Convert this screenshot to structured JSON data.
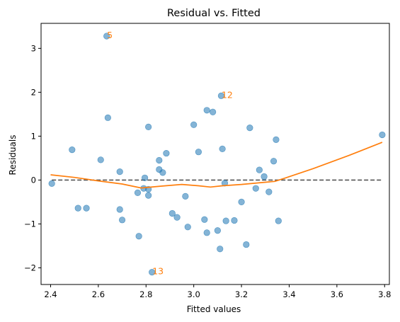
{
  "chart_data": {
    "type": "scatter",
    "title": "Residual vs. Fitted",
    "xlabel": "Fitted values",
    "ylabel": "Residuals",
    "xlim": [
      2.36,
      3.82
    ],
    "ylim": [
      -2.38,
      3.57
    ],
    "xticks": [
      2.4,
      2.6,
      2.8,
      3.0,
      3.2,
      3.4,
      3.6,
      3.8
    ],
    "xtick_labels": [
      "2.4",
      "2.6",
      "2.8",
      "3.0",
      "3.2",
      "3.4",
      "3.6",
      "3.8"
    ],
    "yticks": [
      -2,
      -1,
      0,
      1,
      2,
      3
    ],
    "ytick_labels": [
      "−2",
      "−1",
      "0",
      "1",
      "2",
      "3"
    ],
    "grid": false,
    "colors": {
      "points": "#1f77b4",
      "lowess": "#ff7f0e",
      "reference": "#555555",
      "labels": "#ff7f0e"
    },
    "reference_line_y": 0,
    "points": [
      {
        "x": 2.405,
        "y": -0.08
      },
      {
        "x": 2.49,
        "y": 0.69
      },
      {
        "x": 2.515,
        "y": -0.64
      },
      {
        "x": 2.55,
        "y": -0.64
      },
      {
        "x": 2.61,
        "y": 0.46
      },
      {
        "x": 2.635,
        "y": 3.28
      },
      {
        "x": 2.64,
        "y": 1.42
      },
      {
        "x": 2.69,
        "y": 0.19
      },
      {
        "x": 2.69,
        "y": -0.67
      },
      {
        "x": 2.7,
        "y": -0.91
      },
      {
        "x": 2.765,
        "y": -0.29
      },
      {
        "x": 2.77,
        "y": -1.28
      },
      {
        "x": 2.79,
        "y": -0.19
      },
      {
        "x": 2.795,
        "y": 0.05
      },
      {
        "x": 2.81,
        "y": -0.21
      },
      {
        "x": 2.81,
        "y": -0.35
      },
      {
        "x": 2.81,
        "y": 1.21
      },
      {
        "x": 2.825,
        "y": -2.1
      },
      {
        "x": 2.855,
        "y": 0.45
      },
      {
        "x": 2.855,
        "y": 0.24
      },
      {
        "x": 2.87,
        "y": 0.17
      },
      {
        "x": 2.885,
        "y": 0.61
      },
      {
        "x": 2.91,
        "y": -0.76
      },
      {
        "x": 2.93,
        "y": -0.85
      },
      {
        "x": 2.965,
        "y": -0.37
      },
      {
        "x": 2.975,
        "y": -1.07
      },
      {
        "x": 3.0,
        "y": 1.26
      },
      {
        "x": 3.02,
        "y": 0.64
      },
      {
        "x": 3.045,
        "y": -0.9
      },
      {
        "x": 3.055,
        "y": 1.59
      },
      {
        "x": 3.055,
        "y": -1.2
      },
      {
        "x": 3.08,
        "y": 1.55
      },
      {
        "x": 3.1,
        "y": -1.15
      },
      {
        "x": 3.11,
        "y": -1.57
      },
      {
        "x": 3.115,
        "y": 1.92
      },
      {
        "x": 3.12,
        "y": 0.71
      },
      {
        "x": 3.13,
        "y": -0.07
      },
      {
        "x": 3.135,
        "y": -0.93
      },
      {
        "x": 3.17,
        "y": -0.92
      },
      {
        "x": 3.2,
        "y": -0.5
      },
      {
        "x": 3.22,
        "y": -1.47
      },
      {
        "x": 3.235,
        "y": 1.19
      },
      {
        "x": 3.26,
        "y": -0.19
      },
      {
        "x": 3.275,
        "y": 0.23
      },
      {
        "x": 3.295,
        "y": 0.08
      },
      {
        "x": 3.315,
        "y": -0.27
      },
      {
        "x": 3.335,
        "y": 0.43
      },
      {
        "x": 3.345,
        "y": 0.92
      },
      {
        "x": 3.355,
        "y": -0.93
      },
      {
        "x": 3.79,
        "y": 1.03
      }
    ],
    "lowess": [
      {
        "x": 2.4,
        "y": 0.12
      },
      {
        "x": 2.5,
        "y": 0.06
      },
      {
        "x": 2.6,
        "y": -0.02
      },
      {
        "x": 2.7,
        "y": -0.09
      },
      {
        "x": 2.78,
        "y": -0.18
      },
      {
        "x": 2.86,
        "y": -0.14
      },
      {
        "x": 2.95,
        "y": -0.1
      },
      {
        "x": 3.02,
        "y": -0.13
      },
      {
        "x": 3.07,
        "y": -0.16
      },
      {
        "x": 3.12,
        "y": -0.13
      },
      {
        "x": 3.2,
        "y": -0.1
      },
      {
        "x": 3.28,
        "y": -0.06
      },
      {
        "x": 3.34,
        "y": -0.03
      },
      {
        "x": 3.38,
        "y": 0.04
      },
      {
        "x": 3.5,
        "y": 0.26
      },
      {
        "x": 3.65,
        "y": 0.56
      },
      {
        "x": 3.79,
        "y": 0.86
      }
    ],
    "annotations": [
      {
        "label": "5",
        "x": 2.635,
        "y": 3.28
      },
      {
        "label": "12",
        "x": 3.115,
        "y": 1.92
      },
      {
        "label": "13",
        "x": 2.825,
        "y": -2.1
      }
    ]
  }
}
